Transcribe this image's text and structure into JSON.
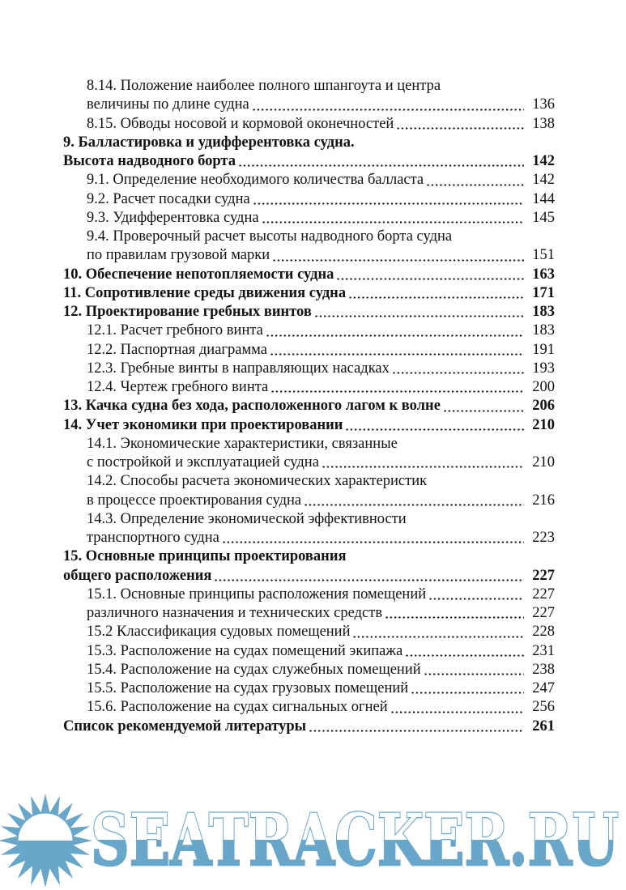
{
  "page_type": "book-table-of-contents",
  "language": "ru",
  "colors": {
    "text": "#121212",
    "background": "#ffffff",
    "watermark_blue": "#68a6ca"
  },
  "watermark": {
    "text": "SEATRACKER.RU",
    "logo": "sun-icon"
  },
  "toc": {
    "entries": [
      {
        "indent": 1,
        "bold": false,
        "lines": [
          {
            "text": "8.14. Положение наиболее полного шпангоута и центра"
          },
          {
            "text": "величины по длине судна",
            "page": "136"
          }
        ]
      },
      {
        "indent": 1,
        "bold": false,
        "lines": [
          {
            "text": "8.15. Обводы носовой и кормовой оконечностей",
            "page": "138"
          }
        ]
      },
      {
        "indent": 0,
        "bold": true,
        "lines": [
          {
            "text": "9. Балластировка и удифферентовка судна."
          },
          {
            "text": "Высота надводного борта",
            "page": "142"
          }
        ]
      },
      {
        "indent": 1,
        "bold": false,
        "lines": [
          {
            "text": "9.1. Определение необходимого количества балласта",
            "page": "142"
          }
        ]
      },
      {
        "indent": 1,
        "bold": false,
        "lines": [
          {
            "text": "9.2. Расчет посадки судна",
            "page": "144"
          }
        ]
      },
      {
        "indent": 1,
        "bold": false,
        "lines": [
          {
            "text": "9.3. Удифферентовка судна",
            "page": "145"
          }
        ]
      },
      {
        "indent": 1,
        "bold": false,
        "lines": [
          {
            "text": "9.4. Проверочный расчет высоты надводного борта судна"
          },
          {
            "text": "по правилам грузовой марки",
            "page": "151"
          }
        ]
      },
      {
        "indent": 0,
        "bold": true,
        "lines": [
          {
            "text": "10. Обеспечение непотопляемости судна",
            "page": "163"
          }
        ]
      },
      {
        "indent": 0,
        "bold": true,
        "lines": [
          {
            "text": "11. Сопротивление среды движения судна",
            "page": "171"
          }
        ]
      },
      {
        "indent": 0,
        "bold": true,
        "lines": [
          {
            "text": "12. Проектирование гребных винтов",
            "page": "183"
          }
        ]
      },
      {
        "indent": 1,
        "bold": false,
        "lines": [
          {
            "text": "12.1. Расчет гребного винта",
            "page": "183"
          }
        ]
      },
      {
        "indent": 1,
        "bold": false,
        "lines": [
          {
            "text": "12.2. Паспортная диаграмма",
            "page": "191"
          }
        ]
      },
      {
        "indent": 1,
        "bold": false,
        "lines": [
          {
            "text": "12.3. Гребные винты в направляющих насадках",
            "page": "193"
          }
        ]
      },
      {
        "indent": 1,
        "bold": false,
        "lines": [
          {
            "text": "12.4. Чертеж гребного винта",
            "page": "200"
          }
        ]
      },
      {
        "indent": 0,
        "bold": true,
        "lines": [
          {
            "text": "13. Качка судна без хода, расположенного лагом к волне",
            "page": "206"
          }
        ]
      },
      {
        "indent": 0,
        "bold": true,
        "lines": [
          {
            "text": "14. Учет экономики при проектировании",
            "page": "210"
          }
        ]
      },
      {
        "indent": 1,
        "bold": false,
        "lines": [
          {
            "text": "14.1. Экономические характеристики, связанные"
          },
          {
            "text": "с постройкой и эксплуатацией судна",
            "page": "210"
          }
        ]
      },
      {
        "indent": 1,
        "bold": false,
        "lines": [
          {
            "text": "14.2. Способы расчета экономических характеристик"
          },
          {
            "text": "в процессе проектирования судна",
            "page": "216"
          }
        ]
      },
      {
        "indent": 1,
        "bold": false,
        "lines": [
          {
            "text": "14.3. Определение экономической эффективности"
          },
          {
            "text": "транспортного судна",
            "page": "223"
          }
        ]
      },
      {
        "indent": 0,
        "bold": true,
        "lines": [
          {
            "text": "15. Основные принципы проектирования"
          },
          {
            "text": "общего расположения",
            "page": "227"
          }
        ]
      },
      {
        "indent": 1,
        "bold": false,
        "lines": [
          {
            "text": "15.1. Основные принципы расположения помещений",
            "page": "227"
          },
          {
            "text": "различного назначения и технических средств",
            "page": "227"
          }
        ]
      },
      {
        "indent": 1,
        "bold": false,
        "lines": [
          {
            "text": "15.2 Классификация судовых помещений",
            "page": "228"
          }
        ]
      },
      {
        "indent": 1,
        "bold": false,
        "lines": [
          {
            "text": "15.3. Расположение на судах помещений экипажа",
            "page": "231"
          }
        ]
      },
      {
        "indent": 1,
        "bold": false,
        "lines": [
          {
            "text": "15.4. Расположение на судах служебных помещений",
            "page": "238"
          }
        ]
      },
      {
        "indent": 1,
        "bold": false,
        "lines": [
          {
            "text": "15.5. Расположение на судах грузовых помещений",
            "page": "247"
          }
        ]
      },
      {
        "indent": 1,
        "bold": false,
        "lines": [
          {
            "text": "15.6. Расположение на судах сигнальных огней",
            "page": "256"
          }
        ]
      },
      {
        "indent": 0,
        "bold": true,
        "lines": [
          {
            "text": "Список рекомендуемой литературы",
            "page": "261"
          }
        ]
      }
    ]
  }
}
